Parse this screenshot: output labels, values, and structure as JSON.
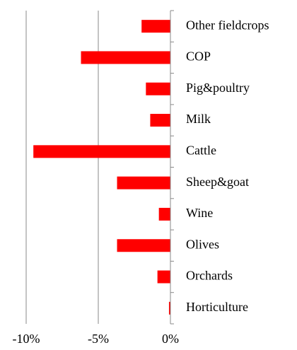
{
  "chart_data": {
    "type": "bar",
    "orientation": "horizontal",
    "categories": [
      "Other fieldcrops",
      "COP",
      "Pig&poultry",
      "Milk",
      "Cattle",
      "Sheep&goat",
      "Wine",
      "Olives",
      "Orchards",
      "Horticulture"
    ],
    "values": [
      -2.0,
      -6.2,
      -1.7,
      -1.4,
      -9.5,
      -3.7,
      -0.8,
      -3.7,
      -0.9,
      -0.1
    ],
    "color": "#ff0000",
    "xlim": [
      -10,
      0
    ],
    "xticks": [
      {
        "value": -10,
        "label": "-10%"
      },
      {
        "value": -5,
        "label": "-5%"
      },
      {
        "value": 0,
        "label": "0%"
      }
    ],
    "grid": true
  }
}
